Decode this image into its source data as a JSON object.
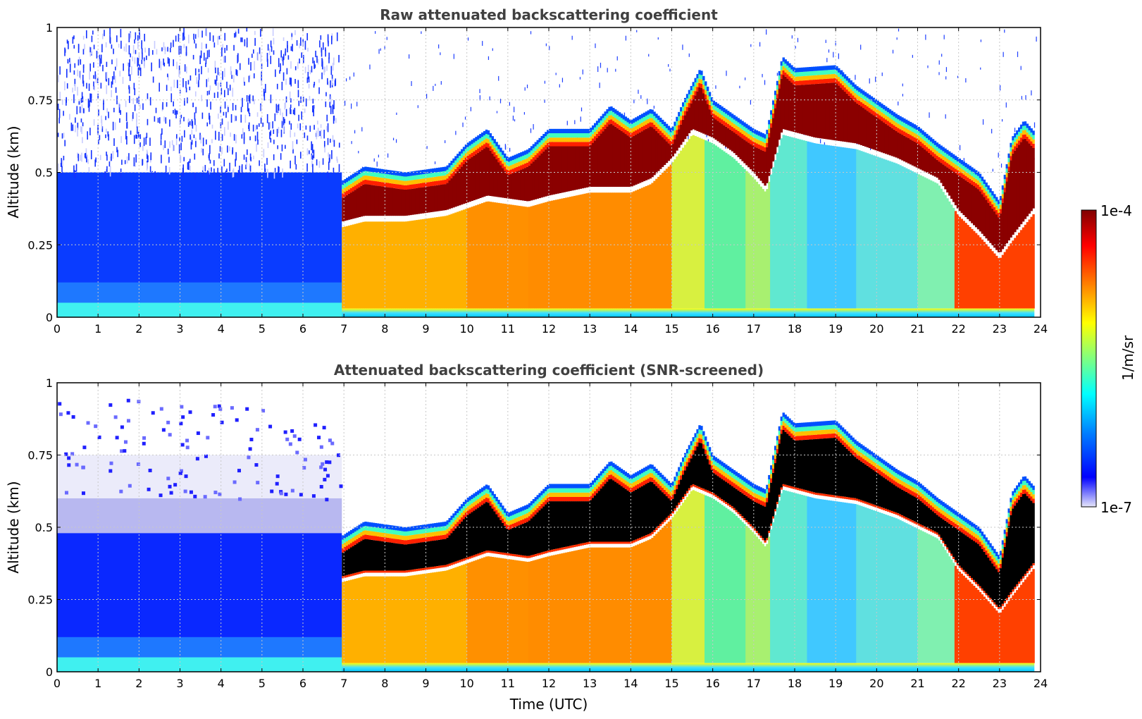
{
  "colors": {
    "jet_stops": [
      "#e6e6fa",
      "#0000ff",
      "#0080ff",
      "#00ffff",
      "#80ff80",
      "#ffff00",
      "#ff8000",
      "#ff0000",
      "#800000"
    ],
    "masked_black": "#000000",
    "grid": "#c8c8c8"
  },
  "chart_data": [
    {
      "type": "heatmap",
      "title": "Raw attenuated backscattering coefficient",
      "xlabel": "",
      "ylabel": "Altitude (km)",
      "xlim": [
        0,
        24
      ],
      "ylim": [
        0,
        1
      ],
      "xticks": [
        "0",
        "1",
        "2",
        "3",
        "4",
        "5",
        "6",
        "7",
        "8",
        "9",
        "10",
        "11",
        "12",
        "13",
        "14",
        "15",
        "16",
        "17",
        "18",
        "19",
        "20",
        "21",
        "22",
        "23",
        "24"
      ],
      "yticks": [
        "0",
        "0.25",
        "0.5",
        "0.75",
        "1"
      ],
      "ytick_values": [
        0,
        0.25,
        0.5,
        0.75,
        1
      ],
      "grid": true,
      "layer_top_km": [
        [
          6.95,
          0.47
        ],
        [
          7.5,
          0.52
        ],
        [
          8.5,
          0.5
        ],
        [
          9.5,
          0.52
        ],
        [
          10.0,
          0.6
        ],
        [
          10.5,
          0.65
        ],
        [
          11.0,
          0.55
        ],
        [
          11.5,
          0.58
        ],
        [
          12.0,
          0.65
        ],
        [
          13.0,
          0.65
        ],
        [
          13.5,
          0.73
        ],
        [
          14.0,
          0.68
        ],
        [
          14.5,
          0.72
        ],
        [
          15.0,
          0.65
        ],
        [
          15.3,
          0.75
        ],
        [
          15.7,
          0.86
        ],
        [
          16.0,
          0.75
        ],
        [
          16.5,
          0.7
        ],
        [
          17.0,
          0.65
        ],
        [
          17.3,
          0.63
        ],
        [
          17.7,
          0.9
        ],
        [
          18.0,
          0.86
        ],
        [
          19.0,
          0.87
        ],
        [
          19.5,
          0.8
        ],
        [
          20.0,
          0.75
        ],
        [
          20.5,
          0.7
        ],
        [
          21.0,
          0.66
        ],
        [
          21.5,
          0.6
        ],
        [
          22.0,
          0.55
        ],
        [
          22.5,
          0.5
        ],
        [
          23.0,
          0.4
        ],
        [
          23.3,
          0.62
        ],
        [
          23.6,
          0.68
        ],
        [
          23.85,
          0.64
        ]
      ],
      "layer_base_km": [
        [
          6.95,
          0.33
        ],
        [
          7.5,
          0.35
        ],
        [
          8.5,
          0.35
        ],
        [
          9.5,
          0.37
        ],
        [
          10.5,
          0.42
        ],
        [
          11.5,
          0.4
        ],
        [
          12.0,
          0.42
        ],
        [
          13.0,
          0.45
        ],
        [
          14.0,
          0.45
        ],
        [
          14.5,
          0.48
        ],
        [
          15.0,
          0.55
        ],
        [
          15.5,
          0.65
        ],
        [
          16.0,
          0.62
        ],
        [
          16.5,
          0.57
        ],
        [
          17.0,
          0.5
        ],
        [
          17.3,
          0.45
        ],
        [
          17.7,
          0.65
        ],
        [
          18.5,
          0.62
        ],
        [
          19.5,
          0.6
        ],
        [
          20.5,
          0.55
        ],
        [
          21.5,
          0.48
        ],
        [
          22.0,
          0.37
        ],
        [
          22.5,
          0.3
        ],
        [
          23.0,
          0.22
        ],
        [
          23.3,
          0.28
        ],
        [
          23.85,
          0.38
        ]
      ]
    },
    {
      "type": "heatmap",
      "title": "Attenuated backscattering coefficient (SNR-screened)",
      "xlabel": "Time (UTC)",
      "ylabel": "Altitude (km)",
      "xlim": [
        0,
        24
      ],
      "ylim": [
        0,
        1
      ],
      "xticks": [
        "0",
        "1",
        "2",
        "3",
        "4",
        "5",
        "6",
        "7",
        "8",
        "9",
        "10",
        "11",
        "12",
        "13",
        "14",
        "15",
        "16",
        "17",
        "18",
        "19",
        "20",
        "21",
        "22",
        "23",
        "24"
      ],
      "yticks": [
        "0",
        "0.25",
        "0.5",
        "0.75",
        "1"
      ],
      "ytick_values": [
        0,
        0.25,
        0.5,
        0.75,
        1
      ],
      "grid": true,
      "masked_saturated": true
    }
  ],
  "colorbar": {
    "label": "1/m/sr",
    "max_label": "1e-4",
    "min_label": "1e-7",
    "scale": "log",
    "range": [
      1e-07,
      0.0001
    ]
  }
}
